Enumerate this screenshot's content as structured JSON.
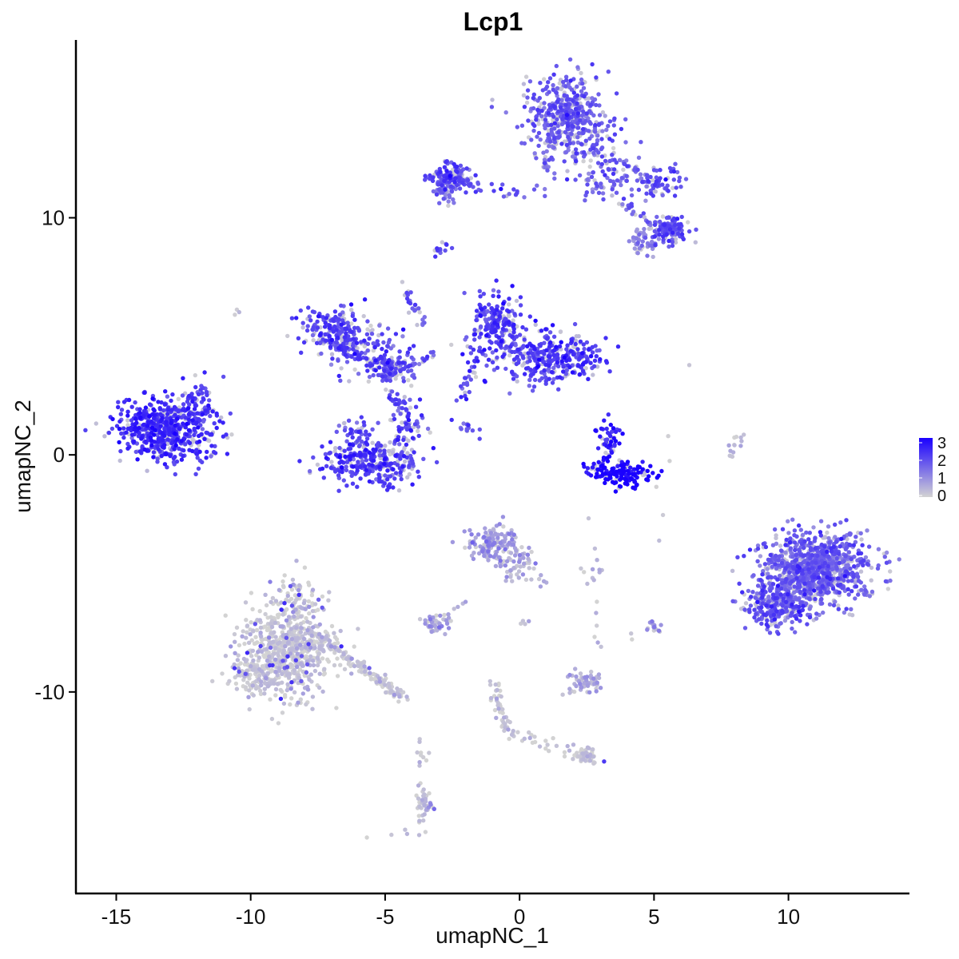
{
  "chart_data": {
    "type": "scatter",
    "title": "Lcp1",
    "xlabel": "umapNC_1",
    "ylabel": "umapNC_2",
    "xlim": [
      -16.5,
      14.5
    ],
    "ylim": [
      -18.5,
      17.5
    ],
    "xticks": [
      -15,
      -10,
      -5,
      0,
      5,
      10
    ],
    "yticks": [
      -10,
      0,
      10
    ],
    "grid": false,
    "color_scale": {
      "low_color": "#d3d3d3",
      "high_color": "#1a00ff",
      "min": 0,
      "max": 3,
      "legend_ticks": [
        "3",
        "2",
        "1",
        "0"
      ],
      "legend_position": "right"
    },
    "clusters": [
      {
        "cx": -13.2,
        "cy": 1.1,
        "sx": 0.85,
        "sy": 0.65,
        "n": 550,
        "expr": 2.3
      },
      {
        "cx": -12.0,
        "cy": 1.5,
        "sx": 0.35,
        "sy": 0.8,
        "n": 60,
        "expr": 2.1
      },
      {
        "cx": -6.8,
        "cy": 5.2,
        "sx": 0.6,
        "sy": 0.5,
        "n": 200,
        "expr": 2.0
      },
      {
        "cx": -5.6,
        "cy": 4.2,
        "sx": 0.8,
        "sy": 0.5,
        "n": 90,
        "expr": 1.9
      },
      {
        "cx": -4.8,
        "cy": 3.6,
        "sx": 0.45,
        "sy": 0.35,
        "n": 80,
        "expr": 1.8
      },
      {
        "cx": -5.5,
        "cy": -0.3,
        "sx": 0.95,
        "sy": 0.45,
        "n": 300,
        "expr": 2.1
      },
      {
        "cx": -4.2,
        "cy": 1.2,
        "sx": 0.35,
        "sy": 0.6,
        "n": 70,
        "expr": 2.0
      },
      {
        "cx": -6.1,
        "cy": 0.9,
        "sx": 0.3,
        "sy": 0.3,
        "n": 40,
        "expr": 2.0
      },
      {
        "cx": -0.8,
        "cy": 5.5,
        "sx": 0.5,
        "sy": 0.6,
        "n": 200,
        "expr": 2.1
      },
      {
        "cx": 0.3,
        "cy": 4.2,
        "sx": 1.0,
        "sy": 0.6,
        "n": 180,
        "expr": 2.0
      },
      {
        "cx": 1.8,
        "cy": 4.1,
        "sx": 0.7,
        "sy": 0.45,
        "n": 180,
        "expr": 2.2
      },
      {
        "cx": 3.3,
        "cy": 0.7,
        "sx": 0.25,
        "sy": 0.5,
        "n": 50,
        "expr": 2.6
      },
      {
        "cx": 3.9,
        "cy": -0.8,
        "sx": 0.5,
        "sy": 0.3,
        "n": 130,
        "expr": 3.0
      },
      {
        "cx": 3.0,
        "cy": -0.6,
        "sx": 0.3,
        "sy": 0.2,
        "n": 30,
        "expr": 2.8
      },
      {
        "cx": 1.8,
        "cy": 14.2,
        "sx": 0.8,
        "sy": 0.85,
        "n": 450,
        "expr": 1.7
      },
      {
        "cx": 3.3,
        "cy": 11.6,
        "sx": 0.7,
        "sy": 0.5,
        "n": 80,
        "expr": 1.6
      },
      {
        "cx": 5.2,
        "cy": 11.5,
        "sx": 0.5,
        "sy": 0.35,
        "n": 50,
        "expr": 1.9
      },
      {
        "cx": 5.6,
        "cy": 9.5,
        "sx": 0.35,
        "sy": 0.3,
        "n": 110,
        "expr": 1.8
      },
      {
        "cx": 4.6,
        "cy": 9.1,
        "sx": 0.3,
        "sy": 0.3,
        "n": 50,
        "expr": 1.0
      },
      {
        "cx": -2.6,
        "cy": 11.7,
        "sx": 0.35,
        "sy": 0.3,
        "n": 120,
        "expr": 2.0
      },
      {
        "cx": -2.8,
        "cy": 11.1,
        "sx": 0.2,
        "sy": 0.3,
        "n": 40,
        "expr": 1.4
      },
      {
        "cx": 11.0,
        "cy": -4.8,
        "sx": 1.0,
        "sy": 0.75,
        "n": 950,
        "expr": 1.6
      },
      {
        "cx": 9.6,
        "cy": -6.4,
        "sx": 0.6,
        "sy": 0.45,
        "n": 260,
        "expr": 1.8
      },
      {
        "cx": -1.0,
        "cy": -3.8,
        "sx": 0.55,
        "sy": 0.4,
        "n": 120,
        "expr": 0.8
      },
      {
        "cx": -0.2,
        "cy": -4.8,
        "sx": 0.35,
        "sy": 0.3,
        "n": 40,
        "expr": 0.6
      },
      {
        "cx": -3.1,
        "cy": -7.1,
        "sx": 0.25,
        "sy": 0.18,
        "n": 40,
        "expr": 0.8
      },
      {
        "cx": 2.4,
        "cy": -9.6,
        "sx": 0.35,
        "sy": 0.2,
        "n": 60,
        "expr": 0.5
      },
      {
        "cx": 5.0,
        "cy": -7.3,
        "sx": 0.12,
        "sy": 0.15,
        "n": 15,
        "expr": 0.9
      },
      {
        "cx": -8.7,
        "cy": -8.3,
        "sx": 0.85,
        "sy": 0.95,
        "n": 650,
        "expr": 0.08
      },
      {
        "cx": -8.3,
        "cy": -6.2,
        "sx": 0.45,
        "sy": 0.55,
        "n": 80,
        "expr": 0.08
      },
      {
        "cx": -9.8,
        "cy": -9.3,
        "sx": 0.5,
        "sy": 0.4,
        "n": 90,
        "expr": 0.06
      },
      {
        "cx": 2.4,
        "cy": -12.7,
        "sx": 0.25,
        "sy": 0.18,
        "n": 40,
        "expr": 0.05
      },
      {
        "cx": -3.6,
        "cy": -14.8,
        "sx": 0.15,
        "sy": 0.35,
        "n": 40,
        "expr": 0.3
      }
    ],
    "streams": [
      {
        "x0": -6.9,
        "y0": 4.7,
        "x1": -4.8,
        "y1": 3.6,
        "n": 40,
        "expr": 1.9
      },
      {
        "x0": -4.8,
        "y0": 3.6,
        "x1": -3.3,
        "y1": 4.2,
        "n": 25,
        "expr": 1.8
      },
      {
        "x0": -4.9,
        "y0": 3.3,
        "x1": -4.5,
        "y1": 2.0,
        "n": 20,
        "expr": 1.9
      },
      {
        "x0": -4.6,
        "y0": 7.5,
        "x1": -3.6,
        "y1": 5.5,
        "n": 25,
        "expr": 1.8
      },
      {
        "x0": -12.7,
        "y0": 1.9,
        "x1": -11.6,
        "y1": 2.8,
        "n": 20,
        "expr": 2.0
      },
      {
        "x0": -1.4,
        "y0": 4.4,
        "x1": -2.3,
        "y1": 2.1,
        "n": 25,
        "expr": 1.9
      },
      {
        "x0": -2.4,
        "y0": 1.5,
        "x1": -1.3,
        "y1": 0.7,
        "n": 15,
        "expr": 1.9
      },
      {
        "x0": -2.2,
        "y0": 11.5,
        "x1": 0.2,
        "y1": 11.0,
        "n": 25,
        "expr": 1.9
      },
      {
        "x0": 0.7,
        "y0": 11.0,
        "x1": 1.3,
        "y1": 13.5,
        "n": 20,
        "expr": 1.5
      },
      {
        "x0": 2.4,
        "y0": 13.0,
        "x1": 5.2,
        "y1": 11.5,
        "n": 40,
        "expr": 1.7
      },
      {
        "x0": 3.6,
        "y0": 10.8,
        "x1": 5.5,
        "y1": 9.5,
        "n": 30,
        "expr": 1.7
      },
      {
        "x0": -3.0,
        "y0": 8.6,
        "x1": -2.7,
        "y1": 8.9,
        "n": 12,
        "expr": 2.0
      },
      {
        "x0": -7.5,
        "y0": -7.6,
        "x1": -4.3,
        "y1": -10.3,
        "n": 130,
        "expr": 0.1
      },
      {
        "x0": -1.0,
        "y0": -9.5,
        "x1": -0.5,
        "y1": -11.7,
        "n": 40,
        "expr": 0.1
      },
      {
        "x0": -0.4,
        "y0": -11.7,
        "x1": 2.4,
        "y1": -12.7,
        "n": 30,
        "expr": 0.08
      },
      {
        "x0": 7.8,
        "y0": -0.2,
        "x1": 8.3,
        "y1": 1.0,
        "n": 14,
        "expr": 0.2
      },
      {
        "x0": -3.6,
        "y0": -13.5,
        "x1": -3.8,
        "y1": -11.7,
        "n": 10,
        "expr": 0.1
      },
      {
        "x0": -0.8,
        "y0": -2.8,
        "x1": 1.0,
        "y1": -5.5,
        "n": 30,
        "expr": 0.8
      },
      {
        "x0": 2.5,
        "y0": -1.5,
        "x1": 2.9,
        "y1": -8.1,
        "n": 12,
        "expr": 0.3
      },
      {
        "x0": -3.0,
        "y0": -7.3,
        "x1": -1.8,
        "y1": -5.8,
        "n": 10,
        "expr": 0.5
      },
      {
        "x0": 2.6,
        "y0": -4.9,
        "x1": 3.0,
        "y1": -4.9,
        "n": 6,
        "expr": 0.3
      },
      {
        "x0": 4.0,
        "y0": -8.7,
        "x1": 6.8,
        "y1": 7.0,
        "n": 8,
        "expr": 0.2
      },
      {
        "x0": -3.3,
        "y0": -15.7,
        "x1": -6.0,
        "y1": -16.2,
        "n": 6,
        "expr": 0.1
      },
      {
        "x0": -10.6,
        "y0": 6.1,
        "x1": -10.5,
        "y1": 6.0,
        "n": 3,
        "expr": 0.2
      },
      {
        "x0": 0.2,
        "y0": -7.0,
        "x1": 0.4,
        "y1": -7.1,
        "n": 4,
        "expr": 0.2
      }
    ]
  }
}
